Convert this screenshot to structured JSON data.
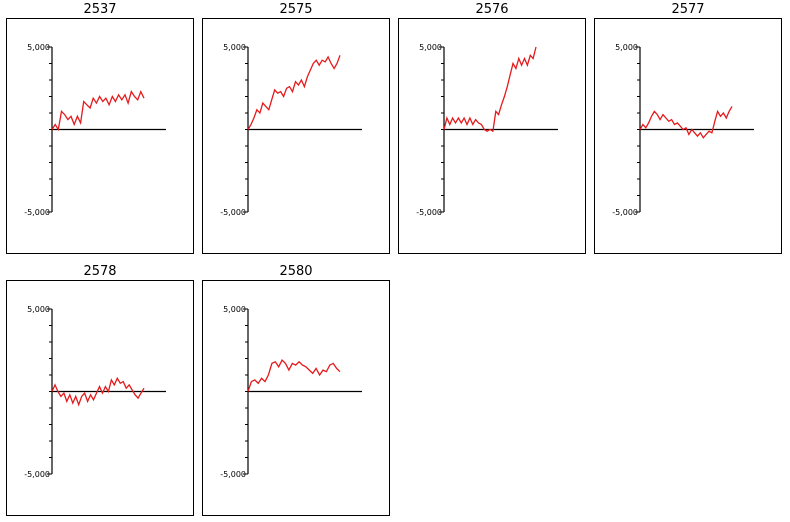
{
  "colors": {
    "series": "#e41a1c",
    "axis": "#000000",
    "frame": "#000000"
  },
  "chart_data": [
    {
      "type": "line",
      "title": "2537",
      "ylim": [
        -5000,
        5000
      ],
      "yticks": [
        5000,
        -5000
      ],
      "ytick_labels": [
        "5,000",
        "-5,000"
      ],
      "x": [
        0,
        1,
        2,
        3,
        4,
        5,
        6,
        7,
        8,
        9,
        10,
        11,
        12,
        13,
        14,
        15,
        16,
        17,
        18,
        19,
        20,
        21,
        22,
        23,
        24,
        25,
        26,
        27,
        28,
        29
      ],
      "series": [
        {
          "values": [
            0,
            300,
            0,
            1100,
            900,
            600,
            800,
            300,
            800,
            400,
            1700,
            1500,
            1300,
            1900,
            1600,
            2000,
            1700,
            1900,
            1500,
            2000,
            1700,
            2100,
            1800,
            2100,
            1600,
            2300,
            2000,
            1800,
            2300,
            1900
          ]
        }
      ]
    },
    {
      "type": "line",
      "title": "2575",
      "ylim": [
        -5000,
        5000
      ],
      "yticks": [
        5000,
        -5000
      ],
      "ytick_labels": [
        "5,000",
        "-5,000"
      ],
      "x": [
        0,
        1,
        2,
        3,
        4,
        5,
        6,
        7,
        8,
        9,
        10,
        11,
        12,
        13,
        14,
        15,
        16,
        17,
        18,
        19,
        20,
        21,
        22,
        23,
        24,
        25,
        26,
        27,
        28,
        29,
        30,
        31
      ],
      "series": [
        {
          "values": [
            0,
            300,
            700,
            1200,
            1000,
            1600,
            1400,
            1200,
            1800,
            2400,
            2200,
            2300,
            2000,
            2500,
            2600,
            2300,
            2900,
            2700,
            3000,
            2600,
            3200,
            3600,
            4000,
            4200,
            3900,
            4200,
            4100,
            4400,
            4000,
            3700,
            4000,
            4500
          ]
        }
      ]
    },
    {
      "type": "line",
      "title": "2576",
      "ylim": [
        -5000,
        5000
      ],
      "yticks": [
        5000,
        -5000
      ],
      "ytick_labels": [
        "5,000",
        "-5,000"
      ],
      "x": [
        0,
        1,
        2,
        3,
        4,
        5,
        6,
        7,
        8,
        9,
        10,
        11,
        12,
        13,
        14,
        15,
        16,
        17,
        18,
        19,
        20,
        21,
        22,
        23,
        24,
        25,
        26,
        27,
        28,
        29,
        30,
        31,
        32
      ],
      "series": [
        {
          "values": [
            0,
            700,
            300,
            700,
            400,
            700,
            400,
            700,
            300,
            700,
            300,
            600,
            400,
            300,
            0,
            -100,
            0,
            -100,
            1100,
            900,
            1500,
            2000,
            2600,
            3300,
            4000,
            3700,
            4300,
            3900,
            4300,
            3900,
            4500,
            4300,
            5000
          ]
        }
      ]
    },
    {
      "type": "line",
      "title": "2577",
      "ylim": [
        -5000,
        5000
      ],
      "yticks": [
        5000,
        -5000
      ],
      "ytick_labels": [
        "5,000",
        "-5,000"
      ],
      "x": [
        0,
        1,
        2,
        3,
        4,
        5,
        6,
        7,
        8,
        9,
        10,
        11,
        12,
        13,
        14,
        15,
        16,
        17,
        18,
        19,
        20,
        21,
        22,
        23,
        24,
        25,
        26,
        27,
        28,
        29,
        30,
        31,
        32
      ],
      "series": [
        {
          "values": [
            0,
            300,
            100,
            400,
            800,
            1100,
            900,
            600,
            900,
            700,
            500,
            600,
            300,
            400,
            200,
            0,
            100,
            -300,
            0,
            -200,
            -400,
            -200,
            -500,
            -300,
            -100,
            -200,
            500,
            1100,
            800,
            1000,
            700,
            1100,
            1400
          ]
        }
      ]
    },
    {
      "type": "line",
      "title": "2578",
      "ylim": [
        -5000,
        5000
      ],
      "yticks": [
        5000,
        -5000
      ],
      "ytick_labels": [
        "5,000",
        "-5,000"
      ],
      "x": [
        0,
        1,
        2,
        3,
        4,
        5,
        6,
        7,
        8,
        9,
        10,
        11,
        12,
        13,
        14,
        15,
        16,
        17,
        18,
        19,
        20,
        21,
        22,
        23,
        24,
        25,
        26,
        27,
        28,
        29,
        30,
        31
      ],
      "series": [
        {
          "values": [
            0,
            400,
            0,
            -300,
            -100,
            -600,
            -200,
            -700,
            -300,
            -800,
            -300,
            -100,
            -600,
            -200,
            -500,
            -100,
            300,
            -100,
            300,
            0,
            700,
            400,
            800,
            500,
            600,
            200,
            400,
            100,
            -200,
            -400,
            -100,
            200
          ]
        }
      ]
    },
    {
      "type": "line",
      "title": "2580",
      "ylim": [
        -5000,
        5000
      ],
      "yticks": [
        5000,
        -5000
      ],
      "ytick_labels": [
        "5,000",
        "-5,000"
      ],
      "x": [
        0,
        1,
        2,
        3,
        4,
        5,
        6,
        7,
        8,
        9,
        10,
        11,
        12,
        13,
        14,
        15,
        16,
        17,
        18,
        19,
        20,
        21,
        22,
        23,
        24,
        25,
        26,
        27
      ],
      "series": [
        {
          "values": [
            0,
            600,
            700,
            500,
            800,
            600,
            1000,
            1700,
            1800,
            1500,
            1900,
            1700,
            1300,
            1700,
            1600,
            1800,
            1600,
            1500,
            1300,
            1100,
            1400,
            1000,
            1300,
            1200,
            1600,
            1700,
            1400,
            1200
          ]
        }
      ]
    }
  ]
}
